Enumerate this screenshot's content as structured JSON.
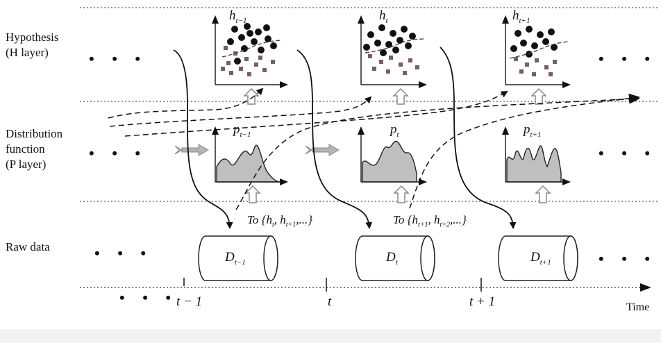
{
  "layers": {
    "h": {
      "line1": "Hypothesis",
      "line2": "(H layer)"
    },
    "p": {
      "line1": "Distribution",
      "line2": "function",
      "line3": "(P layer)"
    },
    "raw": {
      "line1": "Raw data"
    }
  },
  "hypotheses": [
    {
      "base": "h",
      "sub": "t−1"
    },
    {
      "base": "h",
      "sub": "t"
    },
    {
      "base": "h",
      "sub": "t+1"
    }
  ],
  "distributions": [
    {
      "base": "p",
      "sub": "t−1"
    },
    {
      "base": "p",
      "sub": "t"
    },
    {
      "base": "p",
      "sub": "t+1"
    }
  ],
  "datasets": [
    {
      "base": "D",
      "sub": "t−1"
    },
    {
      "base": "D",
      "sub": "t"
    },
    {
      "base": "D",
      "sub": "t+1"
    }
  ],
  "transfers": [
    {
      "prefix": "To",
      "open": "{",
      "b1": "h",
      "s1": "t",
      "sep": ", ",
      "b2": "h",
      "s2": "t+1",
      "rest": ",...}"
    },
    {
      "prefix": "To",
      "open": "{",
      "b1": "h",
      "s1": "t+1",
      "sep": ", ",
      "b2": "h",
      "s2": "t+2",
      "rest": ",...}"
    }
  ],
  "timeline": {
    "ticks": [
      "t − 1",
      "t",
      "t + 1"
    ],
    "axis_label": "Time"
  },
  "ellipsis": "• • •"
}
